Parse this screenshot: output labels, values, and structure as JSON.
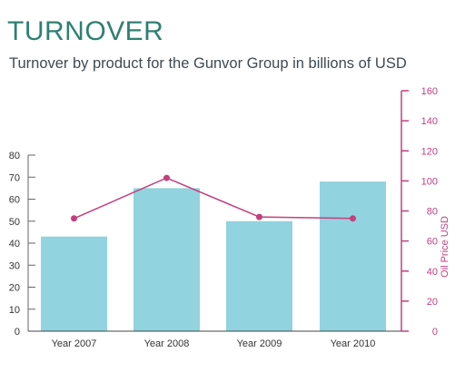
{
  "header": {
    "title": "TURNOVER",
    "subtitle": "Turnover by product for the Gunvor Group in billions of USD"
  },
  "colors": {
    "title": "#2f7f73",
    "bar": "#91d3df",
    "line": "#c2407e",
    "right_axis": "#c2407e"
  },
  "chart_data": {
    "type": "bar",
    "categories": [
      "Year 2007",
      "Year 2008",
      "Year 2009",
      "Year 2010"
    ],
    "series": [
      {
        "type": "bar",
        "axis": "left",
        "values": [
          43,
          65,
          50,
          68
        ]
      },
      {
        "type": "line",
        "axis": "right",
        "values": [
          75,
          102,
          76,
          75
        ]
      }
    ],
    "left_axis": {
      "ylim": [
        0,
        80
      ],
      "ticks": [
        0,
        10,
        20,
        30,
        40,
        50,
        60,
        70,
        80
      ]
    },
    "right_axis": {
      "ylabel": "Oil Price  USD",
      "ylim": [
        0,
        160
      ],
      "ticks": [
        0,
        20,
        40,
        60,
        80,
        100,
        120,
        140,
        160
      ]
    },
    "grid": false,
    "legend": "none"
  }
}
